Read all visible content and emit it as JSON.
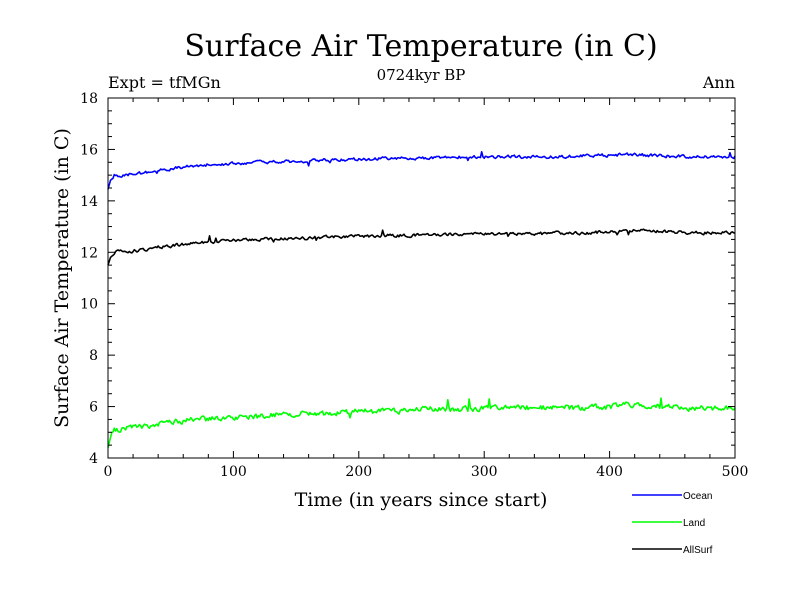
{
  "chart_data": {
    "type": "line",
    "title": "Surface Air Temperature (in C)",
    "subtitle": "0724kyr BP",
    "left_label": "Expt = tfMGn",
    "right_label": "Ann",
    "xlabel": "Time (in years since start)",
    "ylabel": "Surface Air Temperature (in C)",
    "xlim": [
      0,
      500
    ],
    "ylim": [
      4,
      18
    ],
    "xticks": [
      0,
      100,
      200,
      300,
      400,
      500
    ],
    "yticks": [
      4,
      6,
      8,
      10,
      12,
      14,
      16,
      18
    ],
    "grid": false,
    "legend_position": "bottom-right, outside plot",
    "series": [
      {
        "name": "Ocean",
        "color": "#0000ff",
        "x": [
          0,
          2,
          5,
          10,
          20,
          30,
          40,
          50,
          60,
          70,
          80,
          90,
          100,
          120,
          140,
          160,
          180,
          200,
          220,
          240,
          260,
          280,
          300,
          320,
          340,
          360,
          380,
          400,
          420,
          440,
          460,
          480,
          500
        ],
        "values": [
          14.45,
          14.8,
          15.0,
          14.95,
          15.05,
          15.1,
          15.2,
          15.25,
          15.3,
          15.35,
          15.4,
          15.42,
          15.45,
          15.5,
          15.52,
          15.55,
          15.6,
          15.62,
          15.65,
          15.65,
          15.68,
          15.7,
          15.7,
          15.72,
          15.7,
          15.72,
          15.75,
          15.78,
          15.8,
          15.75,
          15.72,
          15.7,
          15.72
        ]
      },
      {
        "name": "Land",
        "color": "#00ff00",
        "x": [
          0,
          2,
          5,
          10,
          20,
          30,
          40,
          50,
          60,
          70,
          80,
          90,
          100,
          120,
          140,
          160,
          180,
          200,
          220,
          240,
          260,
          280,
          300,
          320,
          340,
          360,
          380,
          400,
          420,
          440,
          460,
          480,
          500
        ],
        "values": [
          4.4,
          4.8,
          5.05,
          5.15,
          5.2,
          5.25,
          5.35,
          5.4,
          5.45,
          5.5,
          5.5,
          5.55,
          5.6,
          5.62,
          5.7,
          5.72,
          5.75,
          5.8,
          5.82,
          5.85,
          5.9,
          5.88,
          5.92,
          5.95,
          5.95,
          5.98,
          5.95,
          6.0,
          6.1,
          6.0,
          5.95,
          5.92,
          5.95
        ]
      },
      {
        "name": "AllSurf",
        "color": "#000000",
        "x": [
          0,
          2,
          5,
          10,
          20,
          30,
          40,
          50,
          60,
          70,
          80,
          90,
          100,
          120,
          140,
          160,
          180,
          200,
          220,
          240,
          260,
          280,
          300,
          320,
          340,
          360,
          380,
          400,
          420,
          440,
          460,
          480,
          500
        ],
        "values": [
          11.5,
          11.8,
          12.0,
          12.05,
          12.05,
          12.1,
          12.2,
          12.25,
          12.3,
          12.35,
          12.4,
          12.42,
          12.45,
          12.5,
          12.52,
          12.55,
          12.6,
          12.62,
          12.65,
          12.65,
          12.68,
          12.7,
          12.7,
          12.72,
          12.72,
          12.75,
          12.75,
          12.8,
          12.85,
          12.8,
          12.78,
          12.75,
          12.78
        ]
      }
    ]
  }
}
